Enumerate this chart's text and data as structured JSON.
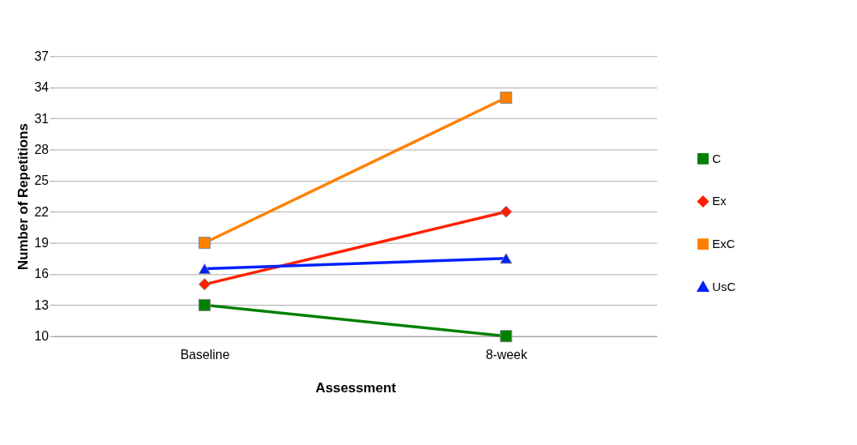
{
  "chart_data": {
    "type": "line",
    "xlabel": "Assessment",
    "ylabel": "Number of Repetitions",
    "categories": [
      "Baseline",
      "8-week"
    ],
    "series": [
      {
        "name": "C",
        "color": "#008000",
        "values": [
          13,
          10
        ],
        "marker": "square"
      },
      {
        "name": "Ex",
        "color": "#ff2000",
        "values": [
          15,
          22
        ],
        "marker": "diamond"
      },
      {
        "name": "ExC",
        "color": "#ff8000",
        "values": [
          19,
          33
        ],
        "marker": "square"
      },
      {
        "name": "UsC",
        "color": "#0020ff",
        "values": [
          16.5,
          17.5
        ],
        "marker": "triangle"
      }
    ],
    "ylim": [
      10,
      37
    ],
    "yticks": [
      10,
      13,
      16,
      19,
      22,
      25,
      28,
      31,
      34,
      37
    ],
    "grid": "y",
    "legend": "right",
    "line_style": "solid"
  }
}
